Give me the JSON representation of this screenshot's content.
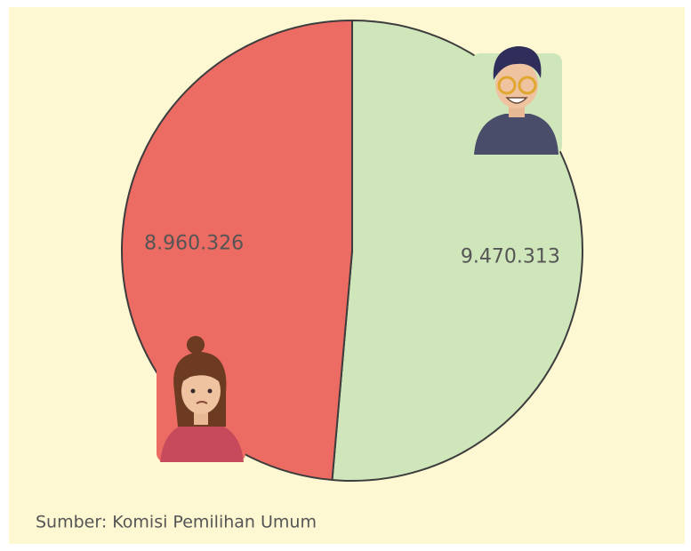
{
  "chart_data": {
    "type": "pie",
    "values": [
      9470313,
      8960326
    ],
    "value_labels": [
      "9.470.313",
      "8.960.326"
    ],
    "colors": [
      "#cfe6bb",
      "#ec6b63"
    ],
    "source": "Sumber: Komisi Pemilihan Umum"
  }
}
